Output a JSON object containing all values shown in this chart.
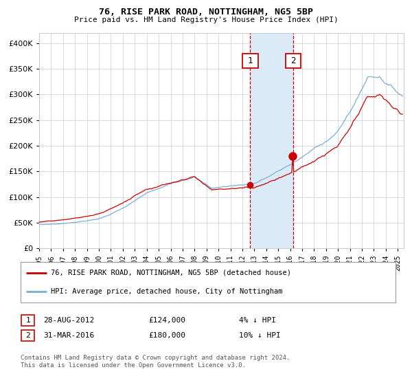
{
  "title": "76, RISE PARK ROAD, NOTTINGHAM, NG5 5BP",
  "subtitle": "Price paid vs. HM Land Registry's House Price Index (HPI)",
  "red_label": "76, RISE PARK ROAD, NOTTINGHAM, NG5 5BP (detached house)",
  "blue_label": "HPI: Average price, detached house, City of Nottingham",
  "annotation1": {
    "label": "1",
    "date": "28-AUG-2012",
    "price": 124000,
    "note": "4% ↓ HPI"
  },
  "annotation2": {
    "label": "2",
    "date": "31-MAR-2016",
    "price": 180000,
    "note": "10% ↓ HPI"
  },
  "footnote": "Contains HM Land Registry data © Crown copyright and database right 2024.\nThis data is licensed under the Open Government Licence v3.0.",
  "ylim": [
    0,
    420000
  ],
  "yticks": [
    0,
    50000,
    100000,
    150000,
    200000,
    250000,
    300000,
    350000,
    400000
  ],
  "xlim_start": 1995,
  "xlim_end": 2025.5,
  "red_color": "#cc0000",
  "blue_color": "#7aaed6",
  "bg_color": "#ffffff",
  "grid_color": "#cccccc",
  "shade_color": "#daeaf7",
  "date1_x": 2012.65,
  "date2_x": 2016.25,
  "marker1_y": 124000,
  "marker2_y": 180000
}
